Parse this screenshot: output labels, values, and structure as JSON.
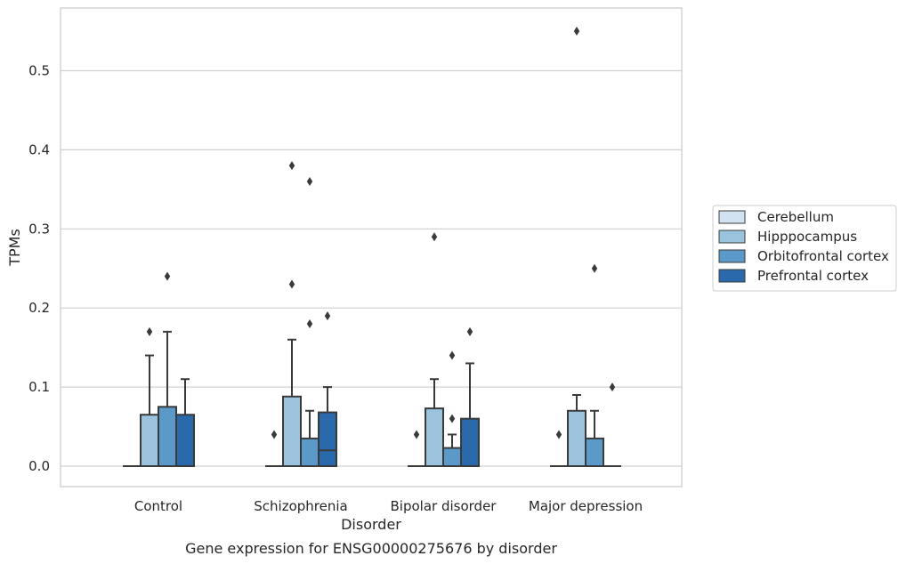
{
  "caption": "Gene expression for ENSG00000275676 by disorder",
  "chart_data": {
    "type": "box",
    "xlabel": "Disorder",
    "ylabel": "TPMs",
    "ylim": [
      -0.028,
      0.58
    ],
    "yticks": [
      0.0,
      0.1,
      0.2,
      0.3,
      0.4,
      0.5
    ],
    "ytick_labels": [
      "0.0",
      "0.1",
      "0.2",
      "0.3",
      "0.4",
      "0.5"
    ],
    "grid": "horizontal",
    "legend_position": "right",
    "categories": [
      "Control",
      "Schizophrenia",
      "Bipolar disorder",
      "Major depression"
    ],
    "series": [
      {
        "name": "Cerebellum",
        "color": "#d1e2f2",
        "boxes": [
          {
            "q1": 0.0,
            "median": 0.0,
            "q3": 0.0,
            "whisker_low": 0.0,
            "whisker_high": 0.0,
            "outliers": []
          },
          {
            "q1": 0.0,
            "median": 0.0,
            "q3": 0.0,
            "whisker_low": 0.0,
            "whisker_high": 0.0,
            "outliers": [
              0.04
            ]
          },
          {
            "q1": 0.0,
            "median": 0.0,
            "q3": 0.0,
            "whisker_low": 0.0,
            "whisker_high": 0.0,
            "outliers": [
              0.04
            ]
          },
          {
            "q1": 0.0,
            "median": 0.0,
            "q3": 0.0,
            "whisker_low": 0.0,
            "whisker_high": 0.0,
            "outliers": [
              0.04
            ]
          }
        ]
      },
      {
        "name": "Hipppocampus",
        "color": "#9ac4de",
        "boxes": [
          {
            "q1": 0.0,
            "median": 0.0,
            "q3": 0.065,
            "whisker_low": 0.0,
            "whisker_high": 0.14,
            "outliers": [
              0.17
            ]
          },
          {
            "q1": 0.0,
            "median": 0.0,
            "q3": 0.088,
            "whisker_low": 0.0,
            "whisker_high": 0.16,
            "outliers": [
              0.23,
              0.38
            ]
          },
          {
            "q1": 0.0,
            "median": 0.0,
            "q3": 0.073,
            "whisker_low": 0.0,
            "whisker_high": 0.11,
            "outliers": [
              0.29
            ]
          },
          {
            "q1": 0.0,
            "median": 0.0,
            "q3": 0.07,
            "whisker_low": 0.0,
            "whisker_high": 0.09,
            "outliers": [
              0.55
            ]
          }
        ]
      },
      {
        "name": "Orbitofrontal cortex",
        "color": "#5b9ac8",
        "boxes": [
          {
            "q1": 0.0,
            "median": 0.0,
            "q3": 0.075,
            "whisker_low": 0.0,
            "whisker_high": 0.17,
            "outliers": [
              0.24
            ]
          },
          {
            "q1": 0.0,
            "median": 0.0,
            "q3": 0.035,
            "whisker_low": 0.0,
            "whisker_high": 0.07,
            "outliers": [
              0.18,
              0.36
            ]
          },
          {
            "q1": 0.0,
            "median": 0.0,
            "q3": 0.023,
            "whisker_low": 0.0,
            "whisker_high": 0.04,
            "outliers": [
              0.06,
              0.14
            ]
          },
          {
            "q1": 0.0,
            "median": 0.0,
            "q3": 0.035,
            "whisker_low": 0.0,
            "whisker_high": 0.07,
            "outliers": [
              0.25
            ]
          }
        ]
      },
      {
        "name": "Prefrontal cortex",
        "color": "#2a6aac",
        "boxes": [
          {
            "q1": 0.0,
            "median": 0.0,
            "q3": 0.065,
            "whisker_low": 0.0,
            "whisker_high": 0.11,
            "outliers": []
          },
          {
            "q1": 0.0,
            "median": 0.02,
            "q3": 0.068,
            "whisker_low": 0.0,
            "whisker_high": 0.1,
            "outliers": [
              0.19
            ]
          },
          {
            "q1": 0.0,
            "median": 0.0,
            "q3": 0.06,
            "whisker_low": 0.0,
            "whisker_high": 0.13,
            "outliers": [
              0.17
            ]
          },
          {
            "q1": 0.0,
            "median": 0.0,
            "q3": 0.0,
            "whisker_low": 0.0,
            "whisker_high": 0.0,
            "outliers": [
              0.1
            ]
          }
        ]
      }
    ]
  }
}
